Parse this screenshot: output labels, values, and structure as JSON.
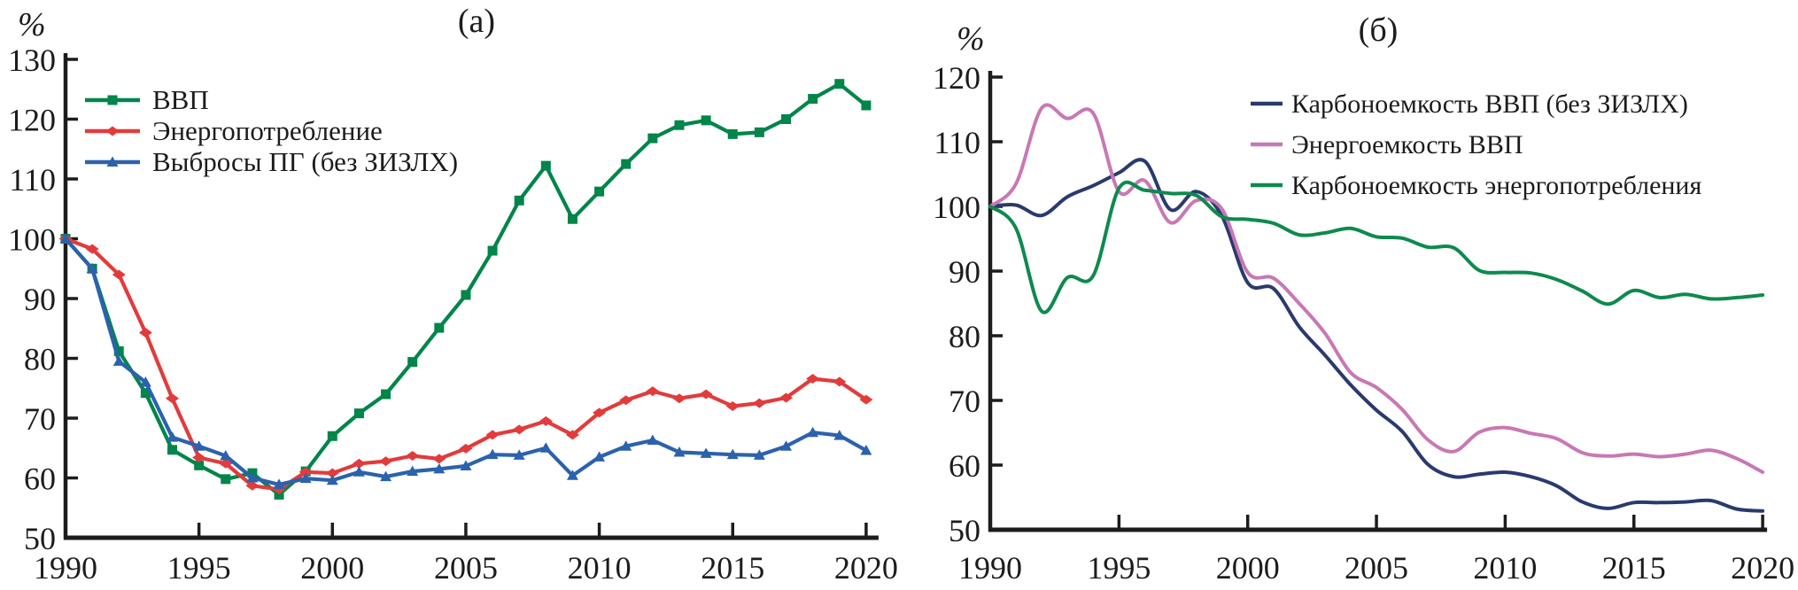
{
  "figure": {
    "background": "#ffffff",
    "axis_color": "#1c1c1c"
  },
  "chart_data": [
    {
      "type": "line",
      "panel_label": "(а)",
      "y_unit_label": "%",
      "xlim": [
        1990,
        2020
      ],
      "ylim": [
        50,
        130
      ],
      "x_ticks": [
        1990,
        1995,
        2000,
        2005,
        2010,
        2015,
        2020
      ],
      "y_ticks": [
        50,
        60,
        70,
        80,
        90,
        100,
        110,
        120,
        130
      ],
      "grid": false,
      "legend_position": "top-left-inside",
      "x": [
        1990,
        1991,
        1992,
        1993,
        1994,
        1995,
        1996,
        1997,
        1998,
        1999,
        2000,
        2001,
        2002,
        2003,
        2004,
        2005,
        2006,
        2007,
        2008,
        2009,
        2010,
        2011,
        2012,
        2013,
        2014,
        2015,
        2016,
        2017,
        2018,
        2019,
        2020
      ],
      "series": [
        {
          "name": "ВВП",
          "color": "#00854a",
          "marker": "square",
          "smooth": false,
          "values": [
            100,
            95,
            81.2,
            74.2,
            64.7,
            62.1,
            59.8,
            60.8,
            57.2,
            61.1,
            67,
            70.8,
            74,
            79.4,
            85.1,
            90.6,
            98,
            106.4,
            112.2,
            103.3,
            107.9,
            112.5,
            116.8,
            119,
            119.8,
            117.5,
            117.8,
            120,
            123.4,
            125.9,
            122.3
          ]
        },
        {
          "name": "Энергопотребление",
          "color": "#e23b3b",
          "marker": "diamond",
          "smooth": false,
          "values": [
            100,
            98.3,
            94,
            84.3,
            73.3,
            63.4,
            62.4,
            58.7,
            58.1,
            61,
            60.8,
            62.4,
            62.8,
            63.7,
            63.2,
            64.9,
            67.2,
            68.1,
            69.5,
            67.2,
            70.9,
            73,
            74.5,
            73.3,
            74,
            72,
            72.5,
            73.4,
            76.6,
            76.1,
            73.1
          ]
        },
        {
          "name": "Выбросы ПГ (без ЗИЗЛХ)",
          "color": "#2b62ae",
          "marker": "triangle",
          "smooth": false,
          "values": [
            100,
            95,
            79.5,
            76,
            66.8,
            65.3,
            63.7,
            60,
            58.9,
            59.9,
            59.6,
            61,
            60.2,
            61.1,
            61.5,
            62,
            63.9,
            63.8,
            65,
            60.4,
            63.5,
            65.3,
            66.3,
            64.3,
            64.1,
            63.9,
            63.8,
            65.3,
            67.6,
            67.1,
            64.6
          ]
        }
      ]
    },
    {
      "type": "line",
      "panel_label": "(б)",
      "y_unit_label": "%",
      "xlim": [
        1990,
        2020
      ],
      "ylim": [
        50,
        120
      ],
      "x_ticks": [
        1990,
        1995,
        2000,
        2005,
        2010,
        2015,
        2020
      ],
      "y_ticks": [
        50,
        60,
        70,
        80,
        90,
        100,
        110,
        120
      ],
      "grid": false,
      "legend_position": "top-right-inside",
      "x": [
        1990,
        1991,
        1992,
        1993,
        1994,
        1995,
        1996,
        1997,
        1998,
        1999,
        2000,
        2001,
        2002,
        2003,
        2004,
        2005,
        2006,
        2007,
        2008,
        2009,
        2010,
        2011,
        2012,
        2013,
        2014,
        2015,
        2016,
        2017,
        2018,
        2019,
        2020
      ],
      "series": [
        {
          "name": "Карбоноемкость ВВП (без ЗИЗЛХ)",
          "color": "#2a3a6e",
          "marker": "none",
          "smooth": true,
          "values": [
            100,
            100.2,
            98.6,
            101.5,
            103.2,
            105.2,
            107,
            99.5,
            102.3,
            98.5,
            88.2,
            87.3,
            81.4,
            77,
            72.4,
            68.5,
            65.2,
            60.1,
            58.2,
            58.6,
            58.9,
            58.2,
            56.8,
            54.3,
            53.3,
            54.2,
            54.2,
            54.3,
            54.5,
            53.2,
            52.9
          ]
        },
        {
          "name": "Энергоемкость ВВП",
          "color": "#c878b4",
          "marker": "none",
          "smooth": true,
          "values": [
            100,
            103.5,
            115.2,
            113.6,
            114.4,
            102.3,
            104,
            97.5,
            100.9,
            99.6,
            89.8,
            88.9,
            85,
            80.4,
            74.3,
            72,
            68.6,
            63.9,
            62.1,
            65.1,
            65.8,
            64.9,
            64.1,
            61.9,
            61.4,
            61.7,
            61.3,
            61.7,
            62.3,
            61,
            58.9
          ]
        },
        {
          "name": "Карбоноемкость энергопотребления",
          "color": "#0d8a4e",
          "marker": "none",
          "smooth": true,
          "values": [
            100,
            96.6,
            83.8,
            89,
            89.3,
            102.8,
            102.5,
            102,
            101.7,
            98.4,
            98,
            97.4,
            95.6,
            95.9,
            96.6,
            95.3,
            95.1,
            93.7,
            93.6,
            90.1,
            89.8,
            89.7,
            88.7,
            86.9,
            84.9,
            87,
            85.9,
            86.4,
            85.7,
            85.9,
            86.3
          ]
        }
      ]
    }
  ]
}
